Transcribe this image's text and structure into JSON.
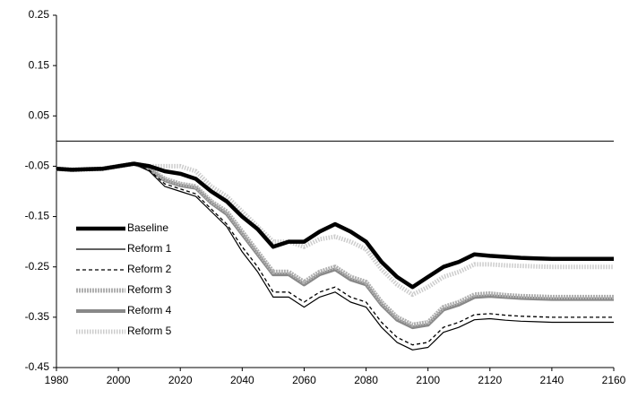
{
  "chart_data": {
    "type": "line",
    "x": [
      1980,
      1985,
      1990,
      1995,
      2000,
      2005,
      2010,
      2015,
      2020,
      2025,
      2030,
      2035,
      2040,
      2045,
      2050,
      2055,
      2060,
      2065,
      2070,
      2075,
      2080,
      2085,
      2090,
      2095,
      2100,
      2105,
      2110,
      2115,
      2120,
      2125,
      2130,
      2135,
      2140,
      2145,
      2150,
      2155,
      2160
    ],
    "xlim": [
      1980,
      2160
    ],
    "xticks": [
      1980,
      2000,
      2020,
      2040,
      2060,
      2080,
      2100,
      2120,
      2140,
      2160
    ],
    "ylim": [
      -0.45,
      0.25
    ],
    "yticks": [
      -0.45,
      -0.35,
      -0.25,
      -0.15,
      -0.05,
      0.05,
      0.15,
      0.25
    ],
    "series": [
      {
        "name": "Baseline",
        "color": "#000000",
        "values": [
          -0.055,
          -0.057,
          -0.056,
          -0.055,
          -0.05,
          -0.045,
          -0.05,
          -0.06,
          -0.065,
          -0.075,
          -0.1,
          -0.12,
          -0.15,
          -0.175,
          -0.21,
          -0.2,
          -0.2,
          -0.18,
          -0.165,
          -0.18,
          -0.2,
          -0.24,
          -0.27,
          -0.29,
          -0.27,
          -0.25,
          -0.24,
          -0.225,
          -0.228,
          -0.23,
          -0.232,
          -0.233,
          -0.234,
          -0.234,
          -0.234,
          -0.234,
          -0.234
        ]
      },
      {
        "name": "Reform 1",
        "color": "#000000",
        "values": [
          -0.055,
          -0.057,
          -0.056,
          -0.055,
          -0.05,
          -0.045,
          -0.06,
          -0.09,
          -0.1,
          -0.11,
          -0.14,
          -0.17,
          -0.22,
          -0.26,
          -0.31,
          -0.31,
          -0.33,
          -0.31,
          -0.3,
          -0.32,
          -0.33,
          -0.37,
          -0.4,
          -0.415,
          -0.41,
          -0.38,
          -0.37,
          -0.355,
          -0.353,
          -0.356,
          -0.358,
          -0.359,
          -0.36,
          -0.36,
          -0.36,
          -0.36,
          -0.36
        ]
      },
      {
        "name": "Reform 2",
        "color": "#000000",
        "values": [
          -0.055,
          -0.057,
          -0.056,
          -0.055,
          -0.05,
          -0.045,
          -0.058,
          -0.085,
          -0.095,
          -0.105,
          -0.135,
          -0.165,
          -0.21,
          -0.25,
          -0.3,
          -0.3,
          -0.32,
          -0.3,
          -0.29,
          -0.31,
          -0.32,
          -0.36,
          -0.39,
          -0.405,
          -0.4,
          -0.37,
          -0.36,
          -0.345,
          -0.343,
          -0.346,
          -0.348,
          -0.349,
          -0.35,
          -0.35,
          -0.35,
          -0.35,
          -0.35
        ]
      },
      {
        "name": "Reform 3",
        "color": "#b0b0b0",
        "values": [
          -0.055,
          -0.057,
          -0.056,
          -0.055,
          -0.05,
          -0.045,
          -0.055,
          -0.075,
          -0.085,
          -0.09,
          -0.12,
          -0.14,
          -0.18,
          -0.22,
          -0.26,
          -0.26,
          -0.28,
          -0.26,
          -0.25,
          -0.27,
          -0.28,
          -0.32,
          -0.35,
          -0.365,
          -0.36,
          -0.33,
          -0.32,
          -0.305,
          -0.303,
          -0.306,
          -0.308,
          -0.309,
          -0.31,
          -0.31,
          -0.31,
          -0.31,
          -0.31
        ]
      },
      {
        "name": "Reform 4",
        "color": "#888888",
        "values": [
          -0.055,
          -0.057,
          -0.056,
          -0.055,
          -0.05,
          -0.045,
          -0.056,
          -0.078,
          -0.088,
          -0.093,
          -0.123,
          -0.145,
          -0.185,
          -0.225,
          -0.265,
          -0.265,
          -0.285,
          -0.265,
          -0.255,
          -0.275,
          -0.285,
          -0.325,
          -0.355,
          -0.37,
          -0.365,
          -0.335,
          -0.325,
          -0.31,
          -0.308,
          -0.31,
          -0.312,
          -0.313,
          -0.314,
          -0.314,
          -0.314,
          -0.314,
          -0.314
        ]
      },
      {
        "name": "Reform 5",
        "color": "#cccccc",
        "values": [
          -0.055,
          -0.057,
          -0.056,
          -0.055,
          -0.05,
          -0.045,
          -0.05,
          -0.05,
          -0.05,
          -0.06,
          -0.09,
          -0.11,
          -0.14,
          -0.17,
          -0.2,
          -0.2,
          -0.21,
          -0.195,
          -0.19,
          -0.2,
          -0.215,
          -0.255,
          -0.285,
          -0.305,
          -0.29,
          -0.27,
          -0.26,
          -0.245,
          -0.245,
          -0.247,
          -0.248,
          -0.249,
          -0.25,
          -0.25,
          -0.25,
          -0.25,
          -0.25
        ]
      }
    ]
  }
}
